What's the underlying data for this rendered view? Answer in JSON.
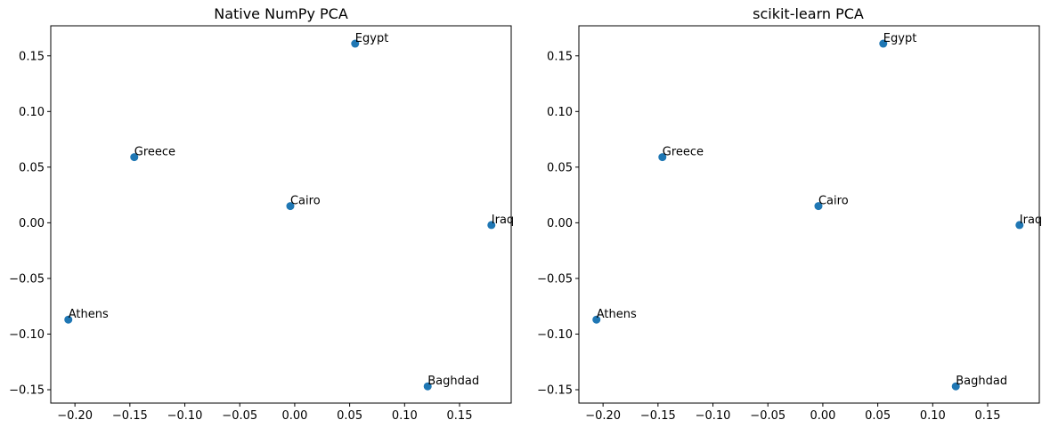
{
  "chart_data": [
    {
      "type": "scatter",
      "title": "Native NumPy PCA",
      "xlabel": "",
      "ylabel": "",
      "xlim": [
        -0.222,
        0.197
      ],
      "ylim": [
        -0.162,
        0.177
      ],
      "xticks": [
        -0.2,
        -0.15,
        -0.1,
        -0.05,
        0.0,
        0.05,
        0.1,
        0.15
      ],
      "yticks": [
        -0.15,
        -0.1,
        -0.05,
        0.0,
        0.05,
        0.1,
        0.15
      ],
      "xtick_labels": [
        "−0.20",
        "−0.15",
        "−0.10",
        "−0.05",
        "0.00",
        "0.05",
        "0.10",
        "0.15"
      ],
      "ytick_labels": [
        "−0.15",
        "−0.10",
        "−0.05",
        "0.00",
        "0.05",
        "0.10",
        "0.15"
      ],
      "grid": false,
      "color": "#1f77b4",
      "points": [
        {
          "label": "Egypt",
          "x": 0.055,
          "y": 0.161
        },
        {
          "label": "Greece",
          "x": -0.146,
          "y": 0.059
        },
        {
          "label": "Cairo",
          "x": -0.004,
          "y": 0.015
        },
        {
          "label": "Iraq",
          "x": 0.179,
          "y": -0.002
        },
        {
          "label": "Athens",
          "x": -0.206,
          "y": -0.087
        },
        {
          "label": "Baghdad",
          "x": 0.121,
          "y": -0.147
        }
      ]
    },
    {
      "type": "scatter",
      "title": "scikit-learn PCA",
      "xlabel": "",
      "ylabel": "",
      "xlim": [
        -0.222,
        0.197
      ],
      "ylim": [
        -0.162,
        0.177
      ],
      "xticks": [
        -0.2,
        -0.15,
        -0.1,
        -0.05,
        0.0,
        0.05,
        0.1,
        0.15
      ],
      "yticks": [
        -0.15,
        -0.1,
        -0.05,
        0.0,
        0.05,
        0.1,
        0.15
      ],
      "xtick_labels": [
        "−0.20",
        "−0.15",
        "−0.10",
        "−0.05",
        "0.00",
        "0.05",
        "0.10",
        "0.15"
      ],
      "ytick_labels": [
        "−0.15",
        "−0.10",
        "−0.05",
        "0.00",
        "0.05",
        "0.10",
        "0.15"
      ],
      "grid": false,
      "color": "#1f77b4",
      "points": [
        {
          "label": "Egypt",
          "x": 0.055,
          "y": 0.161
        },
        {
          "label": "Greece",
          "x": -0.146,
          "y": 0.059
        },
        {
          "label": "Cairo",
          "x": -0.004,
          "y": 0.015
        },
        {
          "label": "Iraq",
          "x": 0.179,
          "y": -0.002
        },
        {
          "label": "Athens",
          "x": -0.206,
          "y": -0.087
        },
        {
          "label": "Baghdad",
          "x": 0.121,
          "y": -0.147
        }
      ]
    }
  ]
}
